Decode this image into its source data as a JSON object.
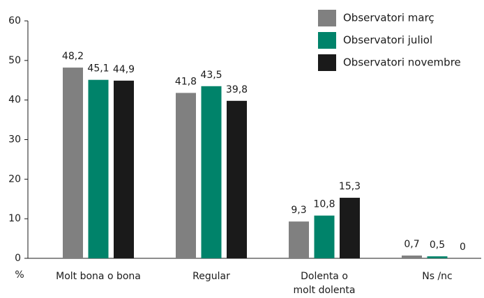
{
  "chart_data": {
    "type": "bar",
    "categories": [
      "Molt bona o bona",
      "Regular",
      "Dolenta o molt dolenta",
      "Ns /nc"
    ],
    "series": [
      {
        "name": "Observatori març",
        "color": "#808080",
        "values": [
          48.2,
          41.8,
          9.3,
          0.7
        ],
        "value_labels": [
          "48,2",
          "41,8",
          "9,3",
          "0,7"
        ]
      },
      {
        "name": "Observatori juliol",
        "color": "#00836a",
        "values": [
          45.1,
          43.5,
          10.8,
          0.5
        ],
        "value_labels": [
          "45,1",
          "43,5",
          "10,8",
          "0,5"
        ]
      },
      {
        "name": "Observatori novembre",
        "color": "#1a1a1a",
        "values": [
          44.9,
          39.8,
          15.3,
          0
        ],
        "value_labels": [
          "44,9",
          "39,8",
          "15,3",
          "0"
        ]
      }
    ],
    "y_label": "%",
    "ylim": [
      0,
      60
    ],
    "yticks": [
      0,
      10,
      20,
      30,
      40,
      50,
      60
    ],
    "legend": "top-right"
  }
}
